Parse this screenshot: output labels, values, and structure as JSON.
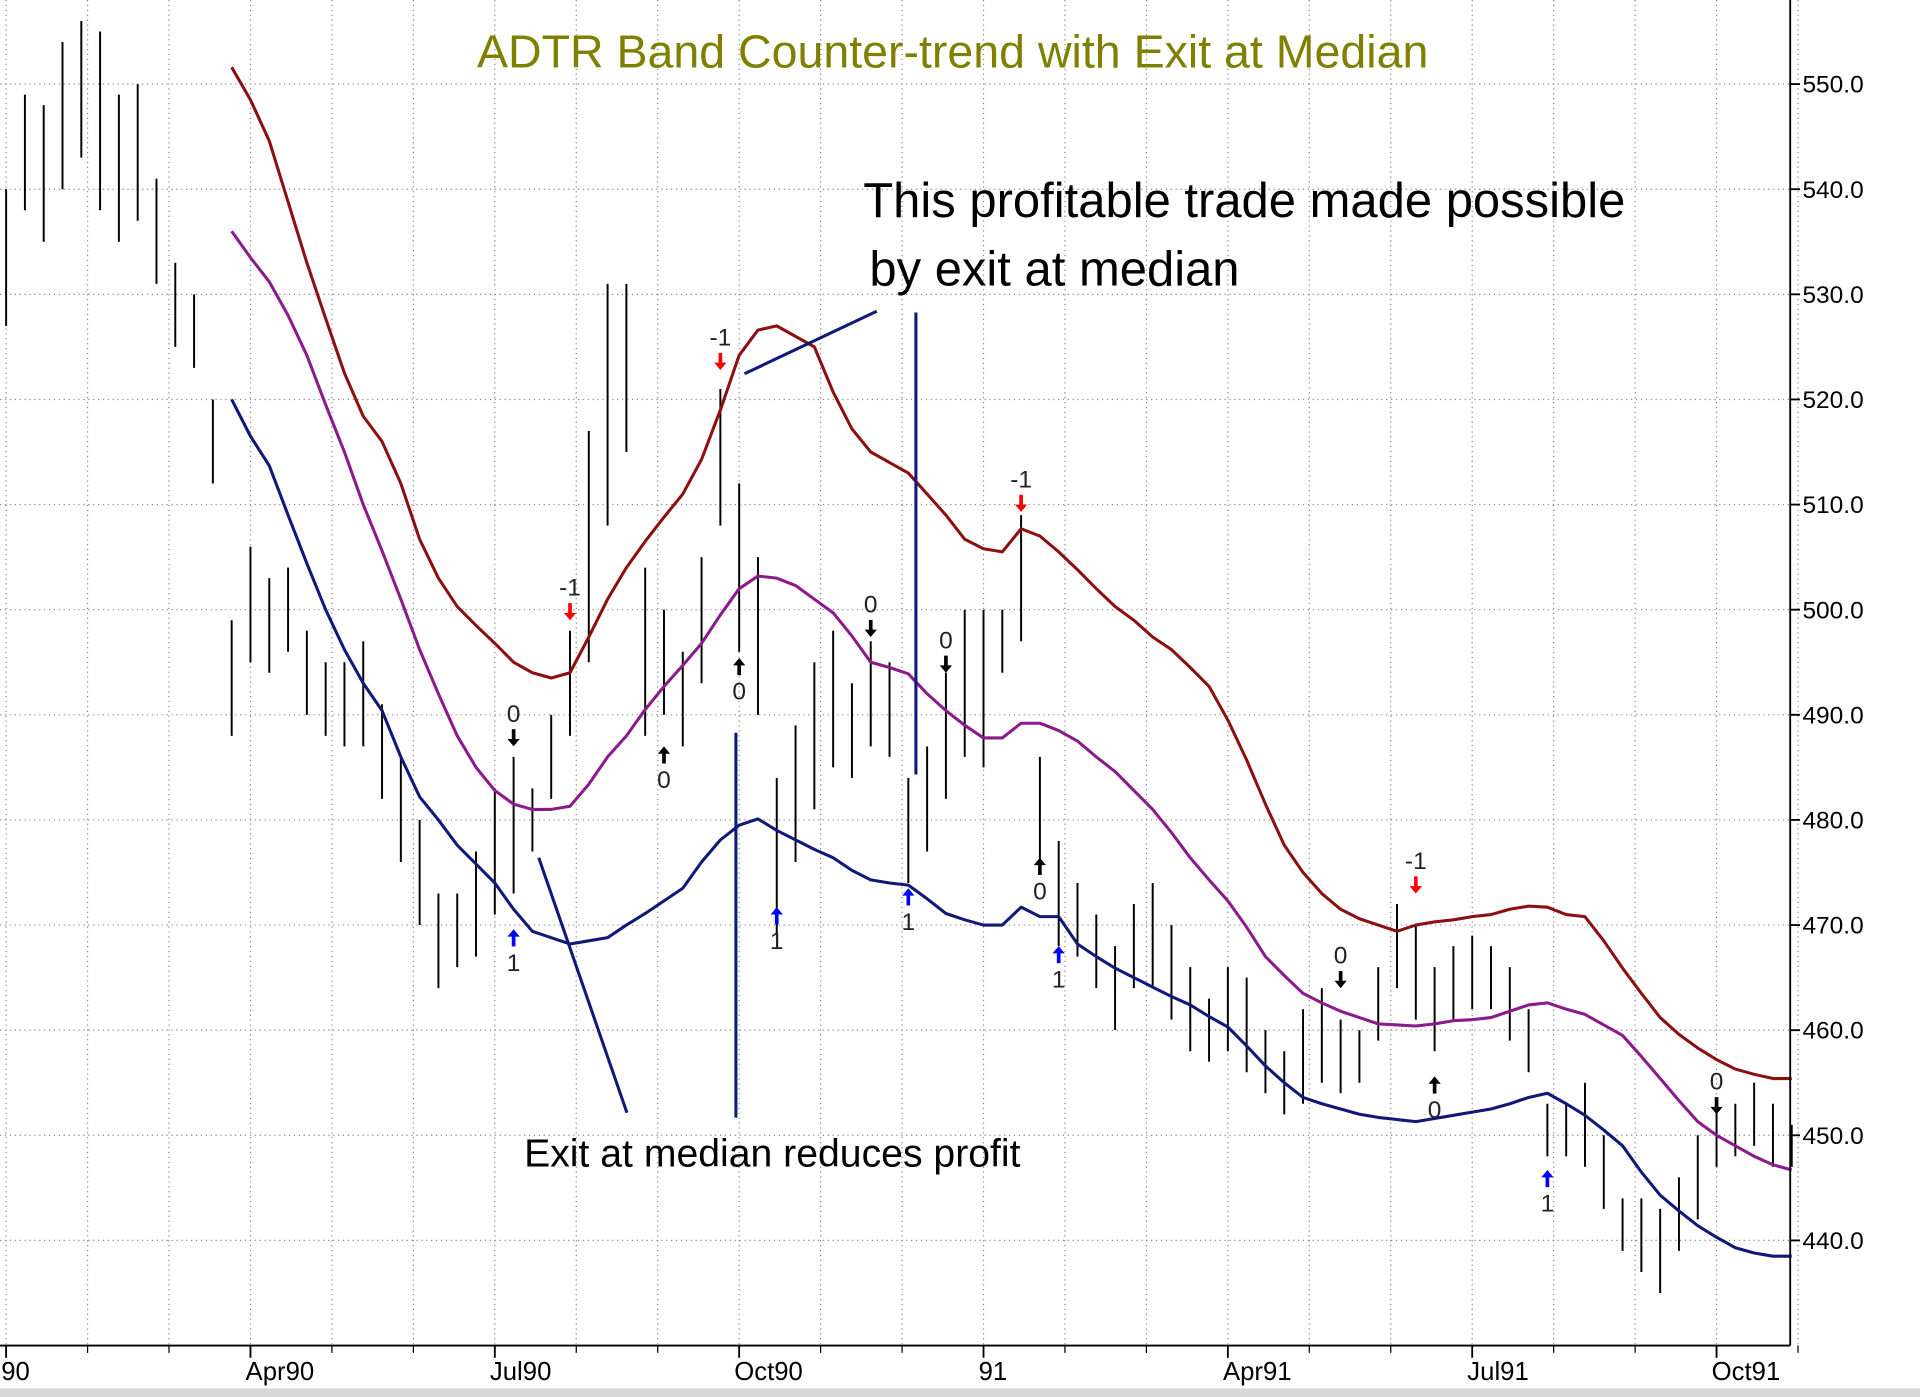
{
  "chart_data": {
    "type": "hilo",
    "title": "ADTR Band Counter-trend with Exit at Median",
    "annotations": [
      {
        "lines": [
          "This profitable trade made possible",
          "by exit at median"
        ]
      },
      {
        "lines": [
          "Exit at median reduces profit"
        ]
      }
    ],
    "categories": [
      "90",
      null,
      null,
      null,
      null,
      null,
      null,
      null,
      null,
      null,
      null,
      null,
      null,
      "Apr90",
      null,
      null,
      null,
      null,
      null,
      null,
      null,
      null,
      null,
      null,
      null,
      null,
      "Jul90",
      null,
      null,
      null,
      null,
      null,
      null,
      null,
      null,
      null,
      null,
      null,
      null,
      "Oct90",
      null,
      null,
      null,
      null,
      null,
      null,
      null,
      null,
      null,
      null,
      null,
      null,
      "91",
      null,
      null,
      null,
      null,
      null,
      null,
      null,
      null,
      null,
      null,
      null,
      null,
      "Apr91",
      null,
      null,
      null,
      null,
      null,
      null,
      null,
      null,
      null,
      null,
      null,
      null,
      "Jul91",
      null,
      null,
      null,
      null,
      null,
      null,
      null,
      null,
      null,
      null,
      null,
      null,
      "Oct91",
      null,
      null,
      null,
      null
    ],
    "high": [
      540,
      549,
      548,
      554,
      556,
      555,
      549,
      550,
      541,
      533,
      530,
      520,
      499,
      506,
      503,
      504,
      498,
      495,
      495,
      497,
      491,
      486,
      480,
      473,
      473,
      477,
      483,
      486,
      483,
      490,
      498,
      517,
      531,
      531,
      504,
      500,
      496,
      505,
      521,
      512,
      505,
      484,
      489,
      495,
      498,
      493,
      497,
      495,
      484,
      487,
      494,
      500,
      500,
      500,
      509,
      486,
      478,
      474,
      471,
      468,
      472,
      474,
      470,
      466,
      463,
      466,
      465,
      460,
      458,
      462,
      464,
      461,
      460,
      466,
      472,
      470,
      466,
      468,
      469,
      468,
      466,
      462,
      453,
      453,
      455,
      450,
      444,
      444,
      443,
      446,
      450,
      453,
      453,
      455,
      453,
      451
    ],
    "low": [
      527,
      538,
      535,
      540,
      543,
      538,
      535,
      537,
      531,
      525,
      523,
      512,
      488,
      495,
      494,
      496,
      490,
      488,
      487,
      487,
      482,
      476,
      470,
      464,
      466,
      467,
      471,
      473,
      477,
      482,
      488,
      495,
      508,
      515,
      488,
      490,
      487,
      493,
      508,
      496,
      490,
      469,
      476,
      481,
      485,
      484,
      487,
      486,
      474,
      477,
      482,
      486,
      485,
      494,
      497,
      476,
      468,
      467,
      464,
      460,
      464,
      464,
      461,
      458,
      457,
      458,
      456,
      454,
      452,
      453,
      455,
      454,
      455,
      459,
      464,
      461,
      458,
      461,
      462,
      462,
      459,
      456,
      448,
      448,
      447,
      443,
      439,
      437,
      435,
      439,
      442,
      447,
      448,
      449,
      447,
      447
    ],
    "bar_color": "#000000",
    "series": [
      {
        "color": "#8b1010",
        "values": [
          null,
          null,
          null,
          null,
          null,
          null,
          null,
          null,
          null,
          null,
          null,
          null,
          551.6,
          548.5,
          544.6,
          538.8,
          533,
          527.7,
          522.5,
          518.4,
          516,
          512,
          506.7,
          503,
          500.3,
          498.5,
          496.8,
          495,
          494,
          493.5,
          494,
          497.4,
          501,
          504,
          506.5,
          508.8,
          511,
          514.3,
          519,
          524.2,
          526.6,
          527,
          526,
          525,
          520.7,
          517.2,
          515,
          514,
          513,
          511,
          509,
          506.7,
          505.8,
          505.5,
          507.7,
          507,
          505.5,
          503.8,
          502,
          500.3,
          499,
          497.4,
          496.2,
          494.5,
          492.7,
          489.5,
          485.7,
          481.5,
          477.6,
          475,
          473,
          471.5,
          470.6,
          470,
          469.4,
          470,
          470.3,
          470.5,
          470.8,
          471,
          471.5,
          471.8,
          471.7,
          471,
          470.8,
          468.5,
          465.9,
          463.5,
          461.2,
          459.6,
          458.3,
          457.2,
          456.3,
          455.8,
          455.4,
          455.4
        ]
      },
      {
        "color": "#8b1a8b",
        "values": [
          null,
          null,
          null,
          null,
          null,
          null,
          null,
          null,
          null,
          null,
          null,
          null,
          536,
          533.5,
          531.2,
          528,
          524.2,
          519.5,
          515,
          510,
          505.6,
          501,
          496.2,
          492,
          488,
          485,
          482.8,
          481.5,
          481,
          481,
          481.3,
          483.4,
          486,
          488,
          490.5,
          492.7,
          494.7,
          496.8,
          499.5,
          502,
          503.2,
          503,
          502.3,
          501,
          499.7,
          497.5,
          495,
          494.5,
          493.9,
          492,
          490.4,
          489,
          487.8,
          487.8,
          489.2,
          489.2,
          488.5,
          487.5,
          486,
          484.6,
          482.8,
          481,
          478.8,
          476.4,
          474.3,
          472.3,
          469.8,
          467,
          465.2,
          463.5,
          462.6,
          461.8,
          461.2,
          460.6,
          460.5,
          460.4,
          460.6,
          460.9,
          461,
          461.2,
          461.8,
          462.4,
          462.6,
          462,
          461.5,
          460.5,
          459.5,
          457.5,
          455.4,
          453.3,
          451.3,
          450,
          449,
          448,
          447.2,
          446.7
        ]
      },
      {
        "color": "#10187a",
        "values": [
          null,
          null,
          null,
          null,
          null,
          null,
          null,
          null,
          null,
          null,
          null,
          null,
          520,
          516.5,
          513.7,
          509,
          504.4,
          500,
          496.2,
          493,
          490.4,
          486,
          482.2,
          480,
          477.6,
          475.8,
          474,
          471.5,
          469.4,
          468.8,
          468.2,
          468.5,
          468.8,
          470,
          471.1,
          472.3,
          473.5,
          476,
          478.1,
          479.5,
          480.1,
          479,
          478.1,
          477.2,
          476.4,
          475.2,
          474.3,
          474,
          473.8,
          472.5,
          471.1,
          470.5,
          470,
          470,
          471.7,
          470.8,
          470.8,
          468.2,
          467,
          465.9,
          465,
          464.1,
          463.2,
          462.4,
          461.3,
          460.3,
          458.5,
          456.6,
          455,
          453.6,
          453,
          452.5,
          452,
          451.7,
          451.5,
          451.3,
          451.6,
          451.9,
          452.2,
          452.5,
          453,
          453.6,
          454,
          453,
          451.9,
          450.5,
          449,
          446.5,
          444.3,
          442.8,
          441.4,
          440.3,
          439.3,
          438.8,
          438.5,
          438.5
        ]
      }
    ],
    "signals": [
      {
        "x": 27,
        "value": 469.6,
        "label": "1",
        "direction": "up",
        "color": "#0000ff"
      },
      {
        "x": 27,
        "value": 487,
        "label": "0",
        "direction": "down",
        "color": "#000000"
      },
      {
        "x": 30,
        "value": 499,
        "label": "-1",
        "direction": "down",
        "color": "#ff0000"
      },
      {
        "x": 35,
        "value": 487,
        "label": "0",
        "direction": "up",
        "color": "#000000"
      },
      {
        "x": 38,
        "value": 522.8,
        "label": "-1",
        "direction": "down",
        "color": "#ff0000"
      },
      {
        "x": 39,
        "value": 495.4,
        "label": "0",
        "direction": "up",
        "color": "#000000"
      },
      {
        "x": 41,
        "value": 471.7,
        "label": "1",
        "direction": "up",
        "color": "#0000ff"
      },
      {
        "x": 46,
        "value": 497.4,
        "label": "0",
        "direction": "down",
        "color": "#000000"
      },
      {
        "x": 48,
        "value": 473.5,
        "label": "1",
        "direction": "up",
        "color": "#0000ff"
      },
      {
        "x": 50,
        "value": 494,
        "label": "0",
        "direction": "down",
        "color": "#000000"
      },
      {
        "x": 54,
        "value": 509.3,
        "label": "-1",
        "direction": "down",
        "color": "#ff0000"
      },
      {
        "x": 55,
        "value": 476.4,
        "label": "0",
        "direction": "up",
        "color": "#000000"
      },
      {
        "x": 56,
        "value": 468,
        "label": "1",
        "direction": "up",
        "color": "#0000ff"
      },
      {
        "x": 71,
        "value": 464,
        "label": "0",
        "direction": "down",
        "color": "#000000"
      },
      {
        "x": 75,
        "value": 473,
        "label": "-1",
        "direction": "down",
        "color": "#ff0000"
      },
      {
        "x": 76,
        "value": 455.6,
        "label": "0",
        "direction": "up",
        "color": "#000000"
      },
      {
        "x": 82,
        "value": 446.7,
        "label": "1",
        "direction": "up",
        "color": "#0000ff"
      },
      {
        "x": 91,
        "value": 452,
        "label": "0",
        "direction": "down",
        "color": "#000000"
      }
    ],
    "ylim": [
      430,
      558
    ],
    "yticks": [
      {
        "value": 440,
        "label": "440.0"
      },
      {
        "value": 450,
        "label": "450.0"
      },
      {
        "value": 460,
        "label": "460.0"
      },
      {
        "value": 470,
        "label": "470.0"
      },
      {
        "value": 480,
        "label": "480.0"
      },
      {
        "value": 490,
        "label": "490.0"
      },
      {
        "value": 500,
        "label": "500.0"
      },
      {
        "value": 510,
        "label": "510.0"
      },
      {
        "value": 520,
        "label": "520.0"
      },
      {
        "value": 530,
        "label": "530.0"
      },
      {
        "value": 540,
        "label": "540.0"
      },
      {
        "value": 550,
        "label": "550.0"
      }
    ],
    "grid": true
  }
}
